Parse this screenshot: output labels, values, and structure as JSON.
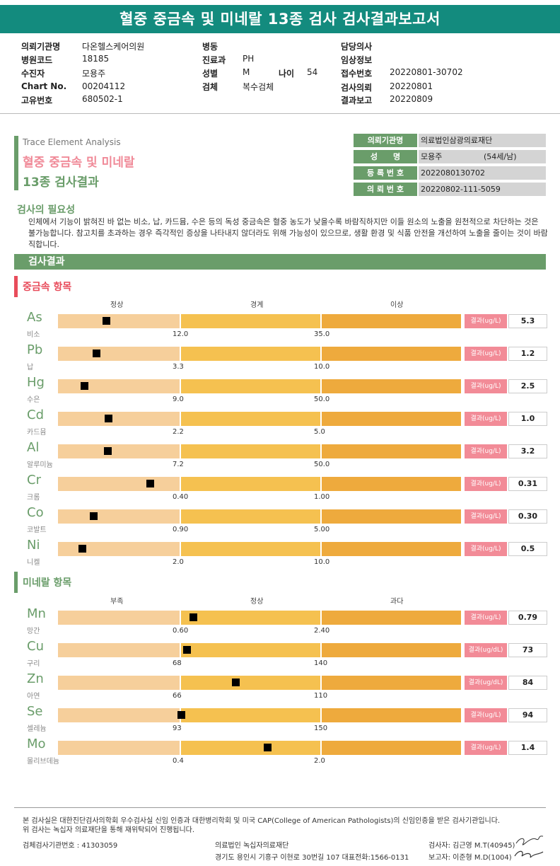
{
  "title": "혈중 중금속 및 미네랄 13종 검사 검사결과보고서",
  "header": {
    "col1": [
      {
        "label": "의뢰기관명",
        "value": "다온헬스케어의원"
      },
      {
        "label": "병원코드",
        "value": "18185"
      },
      {
        "label": "수진자",
        "value": "모용주"
      },
      {
        "label": "Chart No.",
        "value": "00204112"
      },
      {
        "label": "고유번호",
        "value": "680502-1"
      }
    ],
    "col2": [
      {
        "label": "병동",
        "value": ""
      },
      {
        "label": "진료과",
        "value": "PH"
      },
      {
        "label": "성별",
        "value": "M"
      },
      {
        "label": "검체",
        "value": "복수검체"
      }
    ],
    "age_label": "나이",
    "age_value": "54",
    "col3": [
      {
        "label": "담당의사",
        "value": ""
      },
      {
        "label": "임상정보",
        "value": ""
      },
      {
        "label": "접수번호",
        "value": "20220801-30702"
      },
      {
        "label": "검사의뢰",
        "value": "20220801"
      },
      {
        "label": "결과보고",
        "value": "20220809"
      }
    ]
  },
  "section_title": {
    "en": "Trace Element Analysis",
    "kr_line1": "혈중 중금속 및 미네랄",
    "kr_line2": "13종 검사결과"
  },
  "info_table": [
    {
      "label": "의뢰기관명",
      "value": "의료법인삼광의료재단"
    },
    {
      "label": "성　　명",
      "value": "모용주",
      "extra": "(54세/남)"
    },
    {
      "label": "등 록 번 호",
      "value": "2022080130702"
    },
    {
      "label": "의 뢰 번 호",
      "value": "20220802-111-5059"
    }
  ],
  "necessity": {
    "title": "검사의 필요성",
    "body": "인체에서 기능이 밝혀진 바 없는 비소, 납, 카드뮴, 수은 등의 독성 중금속은 혈중 농도가 낮을수록 바람직하지만 이들 원소의 노출을 원천적으로 차단하는 것은 불가능합니다. 참고치를 초과하는 경우 즉각적인 증상을 나타내지 않더라도 위해 가능성이 있으므로, 생활 환경 및 식품 안전을 개선하여 노출을 줄이는 것이 바람직합니다."
  },
  "result_heading": "검사결과",
  "heavy": {
    "title": "중금속 항목",
    "columns": [
      "정상",
      "경계",
      "이상"
    ],
    "items": [
      {
        "symbol": "As",
        "name": "비소",
        "t1": "12.0",
        "t2": "35.0",
        "unit": "결과(ug/L)",
        "result": "5.3",
        "level": 0.12
      },
      {
        "symbol": "Pb",
        "name": "납",
        "t1": "3.3",
        "t2": "10.0",
        "unit": "결과(ug/L)",
        "result": "1.2",
        "level": 0.095
      },
      {
        "symbol": "Hg",
        "name": "수은",
        "t1": "9.0",
        "t2": "50.0",
        "unit": "결과(ug/L)",
        "result": "2.5",
        "level": 0.065
      },
      {
        "symbol": "Cd",
        "name": "카드뮴",
        "t1": "2.2",
        "t2": "5.0",
        "unit": "결과(ug/L)",
        "result": "1.0",
        "level": 0.125
      },
      {
        "symbol": "Al",
        "name": "알루미늄",
        "t1": "7.2",
        "t2": "50.0",
        "unit": "결과(ug/L)",
        "result": "3.2",
        "level": 0.122
      },
      {
        "symbol": "Cr",
        "name": "크롬",
        "t1": "0.40",
        "t2": "1.00",
        "unit": "결과(ug/L)",
        "result": "0.31",
        "level": 0.228
      },
      {
        "symbol": "Co",
        "name": "코발트",
        "t1": "0.90",
        "t2": "5.00",
        "unit": "결과(ug/L)",
        "result": "0.30",
        "level": 0.087
      },
      {
        "symbol": "Ni",
        "name": "니켈",
        "t1": "2.0",
        "t2": "10.0",
        "unit": "결과(ug/L)",
        "result": "0.5",
        "level": 0.06
      }
    ]
  },
  "mineral": {
    "title": "미네랄 항목",
    "columns": [
      "부족",
      "정상",
      "과다"
    ],
    "items": [
      {
        "symbol": "Mn",
        "name": "망간",
        "t1": "0.60",
        "t2": "2.40",
        "unit": "결과(ug/L)",
        "result": "0.79",
        "level": 0.335
      },
      {
        "symbol": "Cu",
        "name": "구리",
        "t1": "68",
        "t2": "140",
        "unit": "결과(ug/dL)",
        "result": "73",
        "level": 0.32
      },
      {
        "symbol": "Zn",
        "name": "아연",
        "t1": "66",
        "t2": "110",
        "unit": "결과(ug/dL)",
        "result": "84",
        "level": 0.44
      },
      {
        "symbol": "Se",
        "name": "셀레늄",
        "t1": "93",
        "t2": "150",
        "unit": "결과(ug/L)",
        "result": "94",
        "level": 0.305
      },
      {
        "symbol": "Mo",
        "name": "몰리브데늄",
        "t1": "0.4",
        "t2": "2.0",
        "unit": "결과(ug/L)",
        "result": "1.4",
        "level": 0.52
      }
    ]
  },
  "footer": {
    "line1": "본 검사실은 대한진단검사의학회 우수검사실 신임 인증과 대한병리학회 및 미국 CAP(College of American Pathologists)의 신임인증을 받은 검사기관입니다.",
    "line2": "위 검사는 녹십자 의료재단을 통해 재위탁되어 진행됩니다.",
    "lab_no": "검체검사기관번호 : 41303059",
    "org": "의료법인 녹십자의료재단",
    "address": "경기도 용인시 기흥구 이현로 30번길 107 대표전화:1566-0131",
    "tester": "검사자: 김근영 M.T(40945)",
    "reporter": "보고자: 이준형 M.D(1004)"
  }
}
